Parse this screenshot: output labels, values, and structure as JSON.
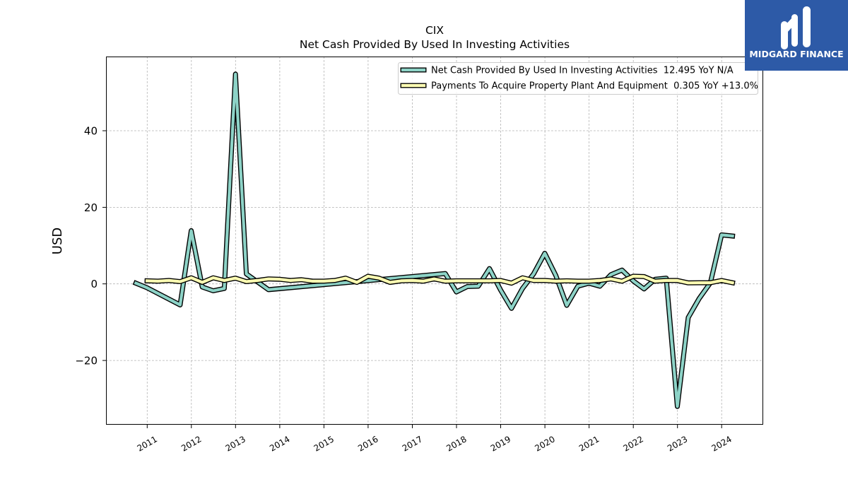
{
  "chart_data": {
    "type": "line",
    "title": "CIX",
    "subtitle": "Net Cash Provided By Used In Investing Activities",
    "ylabel": "USD",
    "xlim": [
      "2010-01-26",
      "2024-12-10"
    ],
    "ylim": [
      -36.77,
      59.37
    ],
    "x_ticks": [
      "2011-01-01",
      "2012-01-01",
      "2013-01-01",
      "2014-01-01",
      "2015-01-01",
      "2016-01-01",
      "2017-01-01",
      "2018-01-01",
      "2019-01-01",
      "2020-01-01",
      "2021-01-01",
      "2022-01-01",
      "2023-01-01",
      "2024-01-01"
    ],
    "x_tick_labels": [
      "2011",
      "2012",
      "2013",
      "2014",
      "2015",
      "2016",
      "2017",
      "2018",
      "2019",
      "2020",
      "2021",
      "2022",
      "2023",
      "2024"
    ],
    "y_ticks": [
      40,
      20,
      0,
      -20
    ],
    "y_tick_labels": [
      "40",
      "20",
      "0",
      "−20"
    ],
    "grid": true,
    "legend_position": "upper right",
    "series": [
      {
        "name": "Net Cash Provided By Used In Investing Activities",
        "legend_stats": "12.495 YoY N/A",
        "color": "#8dd3c7",
        "x": [
          "2010-09-30",
          "2010-12-31",
          "2011-09-30",
          "2011-12-31",
          "2012-03-31",
          "2012-06-30",
          "2012-09-30",
          "2012-12-31",
          "2013-03-31",
          "2013-09-30",
          "2017-09-30",
          "2017-12-31",
          "2018-03-31",
          "2018-06-30",
          "2018-09-30",
          "2018-12-31",
          "2019-03-31",
          "2019-06-30",
          "2019-09-30",
          "2019-12-31",
          "2020-03-31",
          "2020-06-30",
          "2020-09-30",
          "2020-12-31",
          "2021-03-31",
          "2021-06-30",
          "2021-09-30",
          "2021-12-31",
          "2022-03-31",
          "2022-06-30",
          "2022-09-30",
          "2022-12-31",
          "2023-03-31",
          "2023-06-30",
          "2023-09-30",
          "2023-12-31",
          "2024-03-31"
        ],
        "y": [
          0.2,
          -1.0,
          -5.5,
          13.9,
          -0.8,
          -1.8,
          -1.2,
          54.8,
          2.6,
          -1.5,
          2.7,
          -2.1,
          -0.7,
          -0.6,
          4.0,
          -1.6,
          -6.4,
          -1.2,
          2.6,
          8.0,
          2.2,
          -5.6,
          -0.6,
          0.2,
          -0.6,
          2.4,
          3.6,
          0.8,
          -1.3,
          1.2,
          1.5,
          -32.0,
          -8.8,
          -3.8,
          0.3,
          12.8,
          12.495
        ]
      },
      {
        "name": "Payments To Acquire Property Plant And Equipment",
        "legend_stats": "0.305 YoY +13.0%",
        "color": "#ffffb3",
        "x": [
          "2010-12-31",
          "2011-03-31",
          "2011-06-30",
          "2011-09-30",
          "2011-12-31",
          "2012-03-31",
          "2012-06-30",
          "2012-09-30",
          "2012-12-31",
          "2013-03-31",
          "2013-06-30",
          "2013-09-30",
          "2013-12-31",
          "2014-03-31",
          "2014-06-30",
          "2014-09-30",
          "2014-12-31",
          "2015-03-31",
          "2015-06-30",
          "2015-09-30",
          "2015-12-31",
          "2016-03-31",
          "2016-06-30",
          "2016-09-30",
          "2016-12-31",
          "2017-03-31",
          "2017-06-30",
          "2017-09-30",
          "2017-12-31",
          "2018-03-31",
          "2018-06-30",
          "2018-09-30",
          "2018-12-31",
          "2019-03-31",
          "2019-06-30",
          "2019-09-30",
          "2019-12-31",
          "2020-03-31",
          "2020-06-30",
          "2020-09-30",
          "2020-12-31",
          "2021-03-31",
          "2021-06-30",
          "2021-09-30",
          "2021-12-31",
          "2022-03-31",
          "2022-06-30",
          "2022-09-30",
          "2022-12-31",
          "2023-03-31",
          "2023-06-30",
          "2023-09-30",
          "2023-12-31",
          "2024-03-31"
        ],
        "y": [
          0.8,
          0.7,
          0.9,
          0.6,
          1.6,
          0.4,
          1.6,
          0.9,
          1.5,
          0.6,
          0.9,
          1.3,
          1.2,
          0.9,
          1.1,
          0.7,
          0.7,
          0.9,
          1.5,
          0.4,
          2.0,
          1.5,
          0.4,
          0.8,
          0.9,
          0.7,
          1.3,
          0.7,
          0.8,
          0.8,
          0.8,
          0.8,
          0.9,
          0.2,
          1.6,
          0.9,
          0.9,
          0.7,
          0.8,
          0.7,
          0.7,
          0.9,
          1.3,
          0.7,
          2.0,
          1.9,
          0.7,
          0.9,
          0.9,
          0.27,
          0.3,
          0.3,
          0.9,
          0.305
        ]
      }
    ]
  },
  "branding": {
    "logo_text": "MIDGARD FINANCE",
    "brand_color": "#2d5aa7"
  }
}
